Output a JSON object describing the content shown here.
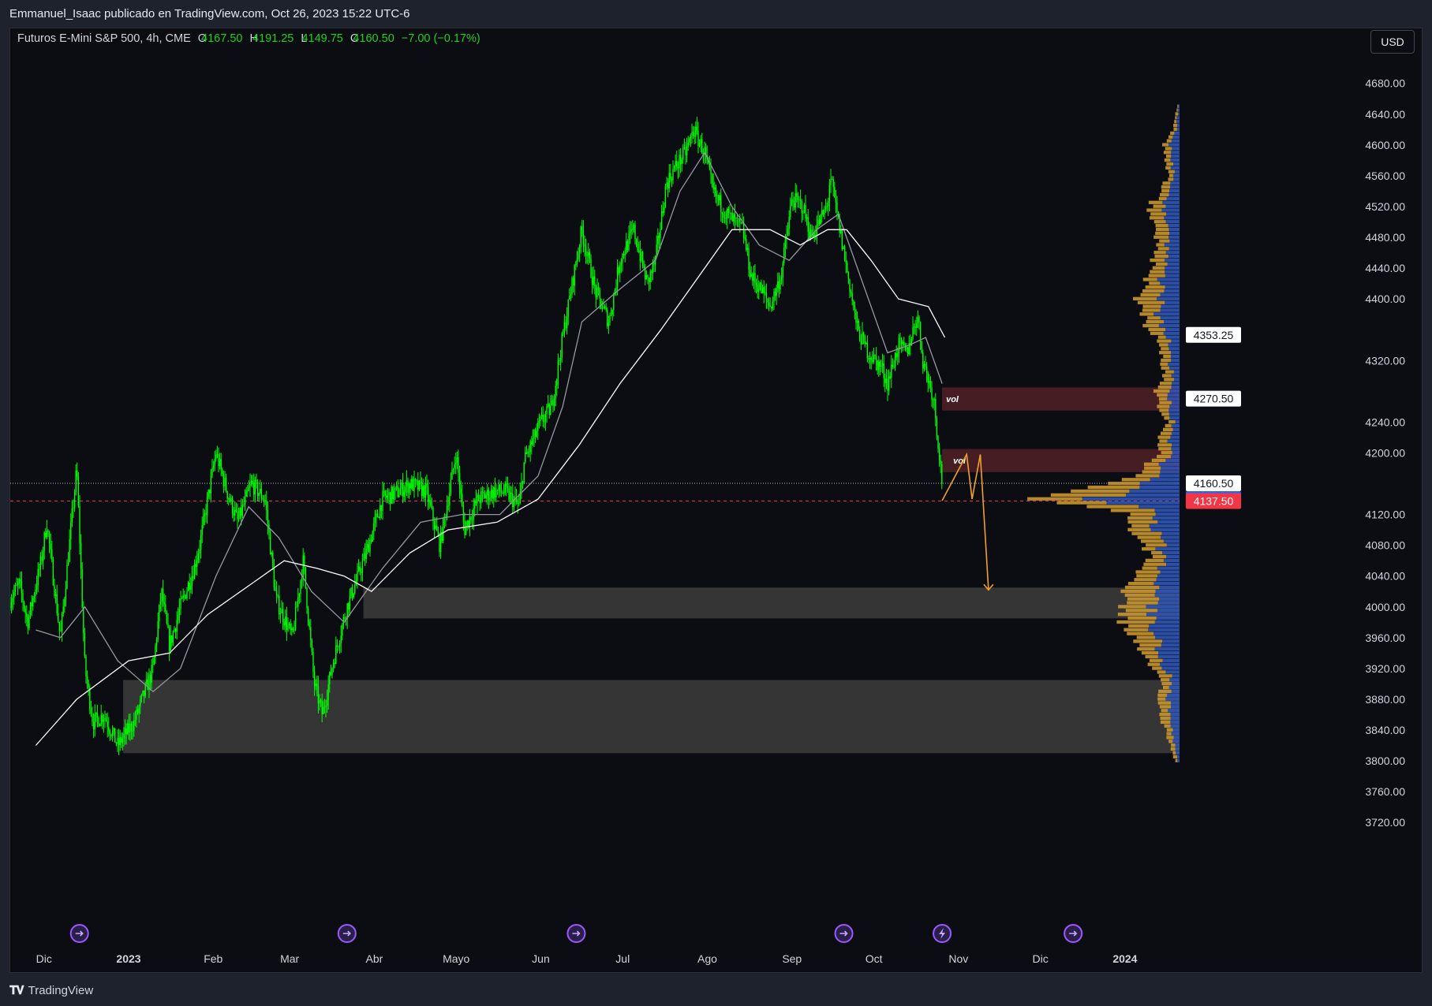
{
  "header": {
    "publisher": "Emmanuel_Isaac publicado en TradingView.com, Oct 26, 2023 15:22 UTC-6"
  },
  "legend": {
    "symbol": "Futuros E-Mini S&P 500, 4h, CME",
    "open_label": "O",
    "open": "4167.50",
    "high_label": "H",
    "high": "4191.25",
    "low_label": "L",
    "low": "4149.75",
    "close_label": "C",
    "close": "4160.50",
    "change": "−7.00 (−0.17%)"
  },
  "currency": "USD",
  "footer": {
    "brand": "TradingView"
  },
  "colors": {
    "background": "#0c0d13",
    "candle": "#00ff00",
    "ma_fast": "#9598a1",
    "ma_slow": "#ffffff",
    "zone_red": "#4a1f24",
    "zone_gray": "#404040",
    "vp_up": "#c7962f",
    "vp_down": "#2f55b8",
    "projection": "#f0a028",
    "price_label_blue": "#2962ff",
    "price_label_red": "#f23645"
  },
  "chart_data": {
    "type": "candlestick",
    "symbol": "Futuros E-Mini S&P 500",
    "interval": "4h",
    "ylim": [
      3700,
      4700
    ],
    "y_ticks": [
      "4680.00",
      "4640.00",
      "4600.00",
      "4560.00",
      "4520.00",
      "4480.00",
      "4440.00",
      "4400.00",
      "4320.00",
      "4240.00",
      "4200.00",
      "4120.00",
      "4080.00",
      "4040.00",
      "4000.00",
      "3960.00",
      "3920.00",
      "3880.00",
      "3840.00",
      "3800.00",
      "3760.00",
      "3720.00"
    ],
    "x_labels": [
      {
        "label": "Dic",
        "date": "2022-12-01"
      },
      {
        "label": "2023",
        "date": "2023-01-01",
        "bold": true
      },
      {
        "label": "Feb",
        "date": "2023-02-01"
      },
      {
        "label": "Mar",
        "date": "2023-03-01"
      },
      {
        "label": "Abr",
        "date": "2023-04-01"
      },
      {
        "label": "Mayo",
        "date": "2023-05-01"
      },
      {
        "label": "Jun",
        "date": "2023-06-01"
      },
      {
        "label": "Jul",
        "date": "2023-07-01"
      },
      {
        "label": "Ago",
        "date": "2023-08-01"
      },
      {
        "label": "Sep",
        "date": "2023-09-01"
      },
      {
        "label": "Oct",
        "date": "2023-10-01"
      },
      {
        "label": "Nov",
        "date": "2023-11-01"
      },
      {
        "label": "Dic",
        "date": "2023-12-01"
      },
      {
        "label": "2024",
        "date": "2024-01-01",
        "bold": true
      }
    ],
    "price_path": [
      [
        "2022-11-17",
        4000
      ],
      [
        "2022-11-22",
        4030
      ],
      [
        "2022-11-25",
        3980
      ],
      [
        "2022-11-30",
        4060
      ],
      [
        "2022-12-02",
        4110
      ],
      [
        "2022-12-07",
        3960
      ],
      [
        "2022-12-13",
        4180
      ],
      [
        "2022-12-16",
        3920
      ],
      [
        "2022-12-19",
        3850
      ],
      [
        "2022-12-23",
        3860
      ],
      [
        "2022-12-28",
        3820
      ],
      [
        "2023-01-03",
        3850
      ],
      [
        "2023-01-06",
        3880
      ],
      [
        "2023-01-10",
        3920
      ],
      [
        "2023-01-13",
        4020
      ],
      [
        "2023-01-16",
        3950
      ],
      [
        "2023-01-20",
        4000
      ],
      [
        "2023-01-25",
        4050
      ],
      [
        "2023-01-27",
        4080
      ],
      [
        "2023-02-02",
        4200
      ],
      [
        "2023-02-06",
        4150
      ],
      [
        "2023-02-10",
        4110
      ],
      [
        "2023-02-15",
        4160
      ],
      [
        "2023-02-20",
        4140
      ],
      [
        "2023-02-24",
        4010
      ],
      [
        "2023-03-02",
        3960
      ],
      [
        "2023-03-06",
        4060
      ],
      [
        "2023-03-10",
        3900
      ],
      [
        "2023-03-13",
        3860
      ],
      [
        "2023-03-17",
        3930
      ],
      [
        "2023-03-22",
        4000
      ],
      [
        "2023-03-29",
        4070
      ],
      [
        "2023-04-04",
        4140
      ],
      [
        "2023-04-10",
        4150
      ],
      [
        "2023-04-14",
        4160
      ],
      [
        "2023-04-20",
        4150
      ],
      [
        "2023-04-25",
        4080
      ],
      [
        "2023-05-01",
        4200
      ],
      [
        "2023-05-04",
        4100
      ],
      [
        "2023-05-09",
        4140
      ],
      [
        "2023-05-15",
        4150
      ],
      [
        "2023-05-19",
        4150
      ],
      [
        "2023-05-24",
        4130
      ],
      [
        "2023-05-26",
        4190
      ],
      [
        "2023-06-01",
        4240
      ],
      [
        "2023-06-05",
        4260
      ],
      [
        "2023-06-09",
        4350
      ],
      [
        "2023-06-13",
        4430
      ],
      [
        "2023-06-16",
        4490
      ],
      [
        "2023-06-21",
        4410
      ],
      [
        "2023-06-26",
        4370
      ],
      [
        "2023-06-30",
        4450
      ],
      [
        "2023-07-05",
        4490
      ],
      [
        "2023-07-10",
        4420
      ],
      [
        "2023-07-13",
        4450
      ],
      [
        "2023-07-17",
        4550
      ],
      [
        "2023-07-20",
        4570
      ],
      [
        "2023-07-24",
        4590
      ],
      [
        "2023-07-27",
        4620
      ],
      [
        "2023-07-31",
        4590
      ],
      [
        "2023-08-03",
        4540
      ],
      [
        "2023-08-08",
        4510
      ],
      [
        "2023-08-14",
        4490
      ],
      [
        "2023-08-17",
        4430
      ],
      [
        "2023-08-21",
        4410
      ],
      [
        "2023-08-24",
        4390
      ],
      [
        "2023-08-28",
        4430
      ],
      [
        "2023-09-01",
        4530
      ],
      [
        "2023-09-05",
        4520
      ],
      [
        "2023-09-08",
        4480
      ],
      [
        "2023-09-14",
        4520
      ],
      [
        "2023-09-15",
        4560
      ],
      [
        "2023-09-18",
        4500
      ],
      [
        "2023-09-21",
        4440
      ],
      [
        "2023-09-25",
        4360
      ],
      [
        "2023-09-29",
        4330
      ],
      [
        "2023-10-04",
        4310
      ],
      [
        "2023-10-06",
        4290
      ],
      [
        "2023-10-10",
        4340
      ],
      [
        "2023-10-13",
        4330
      ],
      [
        "2023-10-17",
        4380
      ],
      [
        "2023-10-19",
        4320
      ],
      [
        "2023-10-23",
        4270
      ],
      [
        "2023-10-26",
        4160.5
      ]
    ],
    "ma_fast_path": [
      [
        "2022-11-28",
        3970
      ],
      [
        "2022-12-07",
        3960
      ],
      [
        "2022-12-16",
        4000
      ],
      [
        "2022-12-28",
        3930
      ],
      [
        "2023-01-10",
        3890
      ],
      [
        "2023-01-20",
        3920
      ],
      [
        "2023-02-02",
        4040
      ],
      [
        "2023-02-14",
        4130
      ],
      [
        "2023-02-25",
        4090
      ],
      [
        "2023-03-09",
        4020
      ],
      [
        "2023-03-21",
        3980
      ],
      [
        "2023-04-04",
        4050
      ],
      [
        "2023-04-18",
        4110
      ],
      [
        "2023-05-03",
        4120
      ],
      [
        "2023-05-17",
        4120
      ],
      [
        "2023-05-31",
        4170
      ],
      [
        "2023-06-09",
        4260
      ],
      [
        "2023-06-16",
        4370
      ],
      [
        "2023-06-29",
        4410
      ],
      [
        "2023-07-13",
        4450
      ],
      [
        "2023-07-22",
        4540
      ],
      [
        "2023-07-31",
        4590
      ],
      [
        "2023-08-10",
        4520
      ],
      [
        "2023-08-20",
        4470
      ],
      [
        "2023-08-31",
        4450
      ],
      [
        "2023-09-10",
        4490
      ],
      [
        "2023-09-18",
        4510
      ],
      [
        "2023-09-27",
        4420
      ],
      [
        "2023-10-06",
        4330
      ],
      [
        "2023-10-14",
        4340
      ],
      [
        "2023-10-20",
        4350
      ],
      [
        "2023-10-26",
        4290
      ]
    ],
    "ma_slow_path": [
      [
        "2022-11-28",
        3820
      ],
      [
        "2022-12-13",
        3880
      ],
      [
        "2023-01-01",
        3930
      ],
      [
        "2023-01-16",
        3940
      ],
      [
        "2023-01-30",
        3990
      ],
      [
        "2023-02-15",
        4030
      ],
      [
        "2023-02-27",
        4060
      ],
      [
        "2023-03-11",
        4050
      ],
      [
        "2023-03-21",
        4040
      ],
      [
        "2023-03-31",
        4020
      ],
      [
        "2023-04-14",
        4070
      ],
      [
        "2023-04-28",
        4100
      ],
      [
        "2023-05-16",
        4110
      ],
      [
        "2023-05-31",
        4140
      ],
      [
        "2023-06-15",
        4210
      ],
      [
        "2023-06-30",
        4290
      ],
      [
        "2023-07-15",
        4360
      ],
      [
        "2023-07-31",
        4440
      ],
      [
        "2023-08-10",
        4490
      ],
      [
        "2023-08-24",
        4490
      ],
      [
        "2023-09-04",
        4470
      ],
      [
        "2023-09-14",
        4490
      ],
      [
        "2023-09-21",
        4490
      ],
      [
        "2023-09-30",
        4450
      ],
      [
        "2023-10-10",
        4400
      ],
      [
        "2023-10-21",
        4390
      ],
      [
        "2023-10-27",
        4350
      ]
    ],
    "zones": [
      {
        "kind": "supply",
        "label": "vol",
        "from": "2023-10-26",
        "y_low": 4255,
        "y_high": 4285
      },
      {
        "kind": "supply",
        "label": "vol",
        "from": "2023-10-26",
        "y_low": 4175,
        "y_high": 4205
      },
      {
        "kind": "demand",
        "label": "",
        "from": "2023-03-28",
        "y_low": 3985,
        "y_high": 4025
      },
      {
        "kind": "demand",
        "label": "",
        "from": "2022-12-30",
        "y_low": 3810,
        "y_high": 3905
      }
    ],
    "projection_path": [
      [
        "2023-10-26",
        4138
      ],
      [
        "2023-11-04",
        4198
      ],
      [
        "2023-11-06",
        4140
      ],
      [
        "2023-11-09",
        4198
      ],
      [
        "2023-11-12",
        4022
      ]
    ],
    "price_labels": [
      {
        "value": "4353.25",
        "y": 4353.25,
        "style": "white"
      },
      {
        "value": "4270.50",
        "y": 4270.5,
        "style": "white"
      },
      {
        "value": "4160.50",
        "y": 4160.5,
        "style": "white"
      },
      {
        "value": "4160.50",
        "y": 4160.5,
        "style": "blue"
      },
      {
        "value": "4137.50",
        "y": 4137.5,
        "style": "red"
      }
    ],
    "volume_profile": {
      "min_price": 3800,
      "max_price": 4650,
      "row_step": 5,
      "profile_points": [
        [
          3800,
          0.02
        ],
        [
          3830,
          0.05
        ],
        [
          3850,
          0.08
        ],
        [
          3880,
          0.1
        ],
        [
          3900,
          0.07
        ],
        [
          3920,
          0.12
        ],
        [
          3950,
          0.17
        ],
        [
          3970,
          0.24
        ],
        [
          4000,
          0.26
        ],
        [
          4020,
          0.24
        ],
        [
          4040,
          0.18
        ],
        [
          4060,
          0.13
        ],
        [
          4080,
          0.15
        ],
        [
          4100,
          0.2
        ],
        [
          4120,
          0.24
        ],
        [
          4140,
          0.6
        ],
        [
          4150,
          0.42
        ],
        [
          4165,
          0.22
        ],
        [
          4180,
          0.17
        ],
        [
          4200,
          0.08
        ],
        [
          4215,
          0.1
        ],
        [
          4240,
          0.05
        ],
        [
          4260,
          0.09
        ],
        [
          4280,
          0.1
        ],
        [
          4300,
          0.07
        ],
        [
          4320,
          0.08
        ],
        [
          4340,
          0.08
        ],
        [
          4360,
          0.14
        ],
        [
          4390,
          0.18
        ],
        [
          4400,
          0.2
        ],
        [
          4420,
          0.15
        ],
        [
          4440,
          0.12
        ],
        [
          4480,
          0.1
        ],
        [
          4520,
          0.13
        ],
        [
          4540,
          0.08
        ],
        [
          4560,
          0.05
        ],
        [
          4580,
          0.06
        ],
        [
          4600,
          0.07
        ],
        [
          4620,
          0.03
        ],
        [
          4650,
          0.01
        ]
      ]
    },
    "event_markers": [
      {
        "date": "2022-12-14",
        "icon": "dividend-arrow-icon"
      },
      {
        "date": "2023-03-22",
        "icon": "dividend-arrow-icon"
      },
      {
        "date": "2023-06-14",
        "icon": "dividend-arrow-icon"
      },
      {
        "date": "2023-09-20",
        "icon": "dividend-arrow-icon"
      },
      {
        "date": "2023-10-26",
        "icon": "lightning-icon"
      },
      {
        "date": "2023-12-13",
        "icon": "dividend-arrow-icon"
      }
    ]
  }
}
